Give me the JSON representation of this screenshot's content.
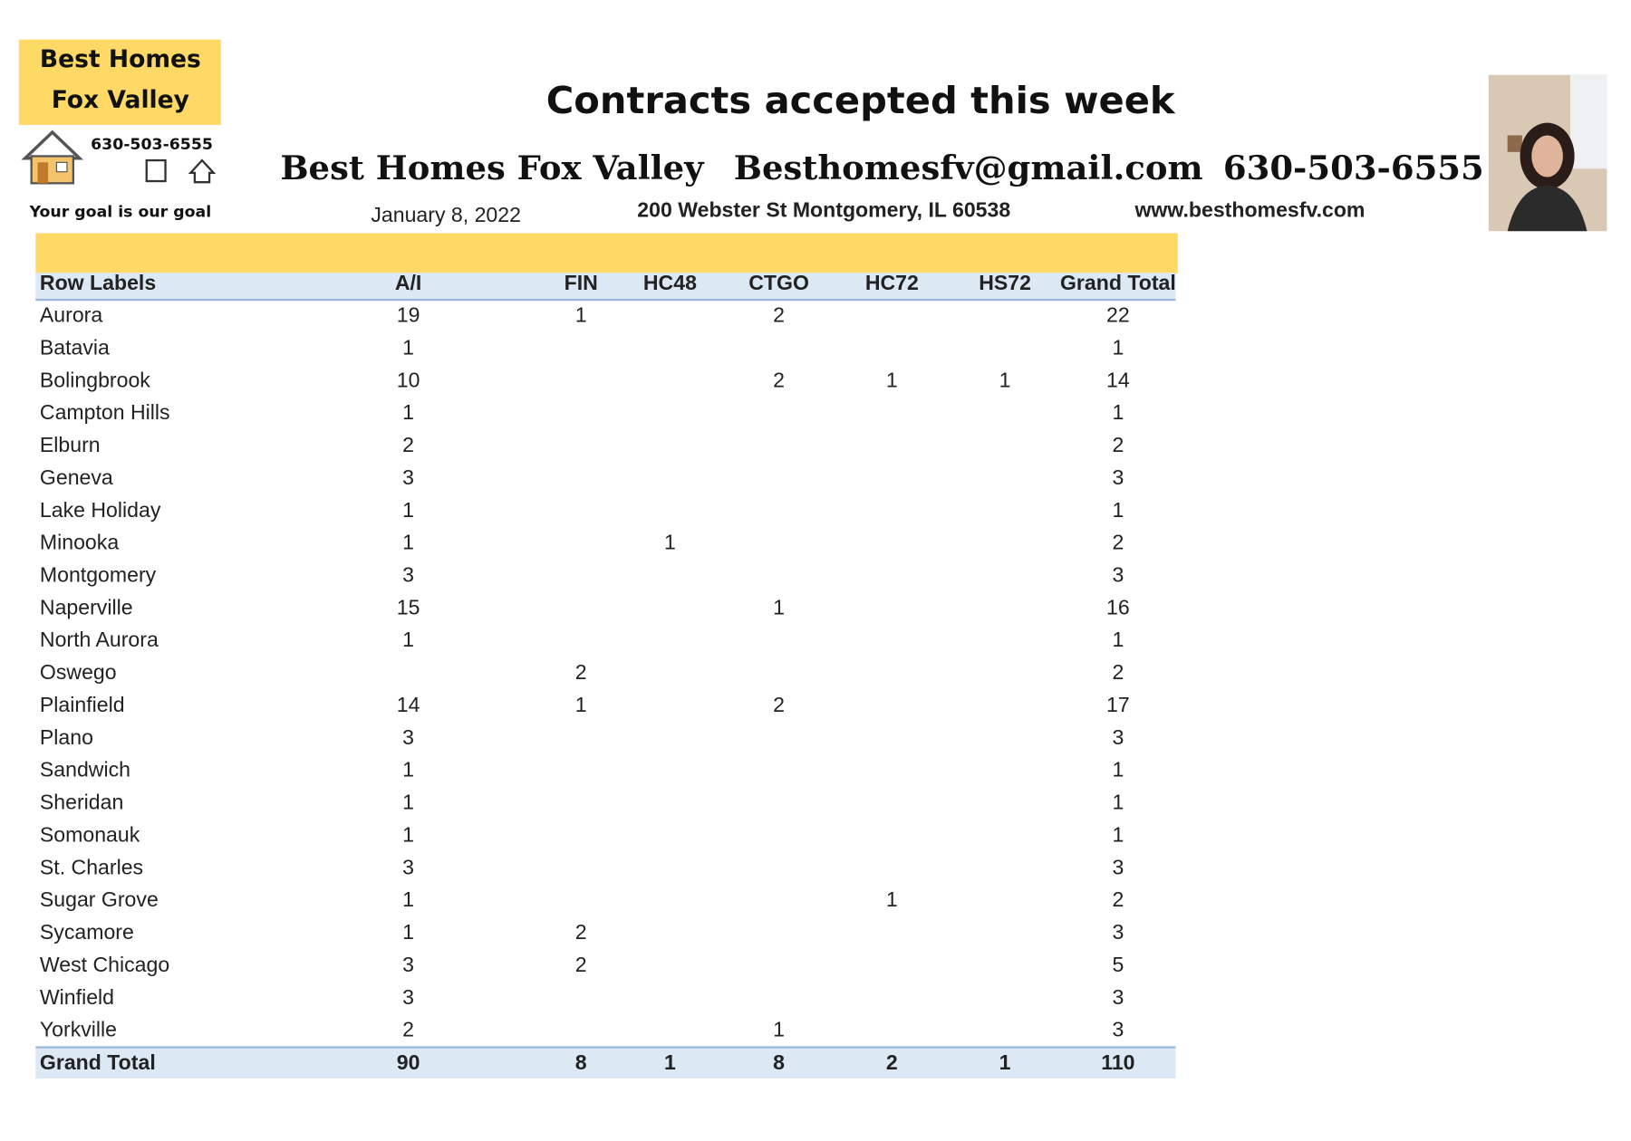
{
  "header": {
    "logo": {
      "line1": "Best Homes",
      "line2": "Fox Valley",
      "phone": "630-503-6555",
      "tagline": "Your goal is our goal"
    },
    "title": "Contracts accepted this week",
    "company": "Best Homes Fox Valley",
    "email": "Besthomesfv@gmail.com",
    "phone": "630-503-6555",
    "date": "January 8, 2022",
    "address": "200 Webster St Montgomery, IL 60538",
    "website": "www.besthomesfv.com"
  },
  "table": {
    "row_header": "Row Labels",
    "columns": [
      "A/I",
      "FIN",
      "HC48",
      "CTGO",
      "HC72",
      "HS72",
      "Grand Total"
    ],
    "rows": [
      {
        "label": "Aurora",
        "cells": [
          19,
          1,
          null,
          2,
          null,
          null,
          22
        ]
      },
      {
        "label": "Batavia",
        "cells": [
          1,
          null,
          null,
          null,
          null,
          null,
          1
        ]
      },
      {
        "label": "Bolingbrook",
        "cells": [
          10,
          null,
          null,
          2,
          1,
          1,
          14
        ]
      },
      {
        "label": "Campton Hills",
        "cells": [
          1,
          null,
          null,
          null,
          null,
          null,
          1
        ]
      },
      {
        "label": "Elburn",
        "cells": [
          2,
          null,
          null,
          null,
          null,
          null,
          2
        ]
      },
      {
        "label": "Geneva",
        "cells": [
          3,
          null,
          null,
          null,
          null,
          null,
          3
        ]
      },
      {
        "label": "Lake Holiday",
        "cells": [
          1,
          null,
          null,
          null,
          null,
          null,
          1
        ]
      },
      {
        "label": "Minooka",
        "cells": [
          1,
          null,
          1,
          null,
          null,
          null,
          2
        ]
      },
      {
        "label": "Montgomery",
        "cells": [
          3,
          null,
          null,
          null,
          null,
          null,
          3
        ]
      },
      {
        "label": "Naperville",
        "cells": [
          15,
          null,
          null,
          1,
          null,
          null,
          16
        ]
      },
      {
        "label": "North Aurora",
        "cells": [
          1,
          null,
          null,
          null,
          null,
          null,
          1
        ]
      },
      {
        "label": "Oswego",
        "cells": [
          null,
          2,
          null,
          null,
          null,
          null,
          2
        ]
      },
      {
        "label": "Plainfield",
        "cells": [
          14,
          1,
          null,
          2,
          null,
          null,
          17
        ]
      },
      {
        "label": "Plano",
        "cells": [
          3,
          null,
          null,
          null,
          null,
          null,
          3
        ]
      },
      {
        "label": "Sandwich",
        "cells": [
          1,
          null,
          null,
          null,
          null,
          null,
          1
        ]
      },
      {
        "label": "Sheridan",
        "cells": [
          1,
          null,
          null,
          null,
          null,
          null,
          1
        ]
      },
      {
        "label": "Somonauk",
        "cells": [
          1,
          null,
          null,
          null,
          null,
          null,
          1
        ]
      },
      {
        "label": "St. Charles",
        "cells": [
          3,
          null,
          null,
          null,
          null,
          null,
          3
        ]
      },
      {
        "label": "Sugar Grove",
        "cells": [
          1,
          null,
          null,
          null,
          1,
          null,
          2
        ]
      },
      {
        "label": "Sycamore",
        "cells": [
          1,
          2,
          null,
          null,
          null,
          null,
          3
        ]
      },
      {
        "label": "West Chicago",
        "cells": [
          3,
          2,
          null,
          null,
          null,
          null,
          5
        ]
      },
      {
        "label": "Winfield",
        "cells": [
          3,
          null,
          null,
          null,
          null,
          null,
          3
        ]
      },
      {
        "label": "Yorkville",
        "cells": [
          2,
          null,
          null,
          1,
          null,
          null,
          3
        ]
      }
    ],
    "total": {
      "label": "Grand Total",
      "cells": [
        90,
        8,
        1,
        8,
        2,
        1,
        110
      ]
    }
  }
}
